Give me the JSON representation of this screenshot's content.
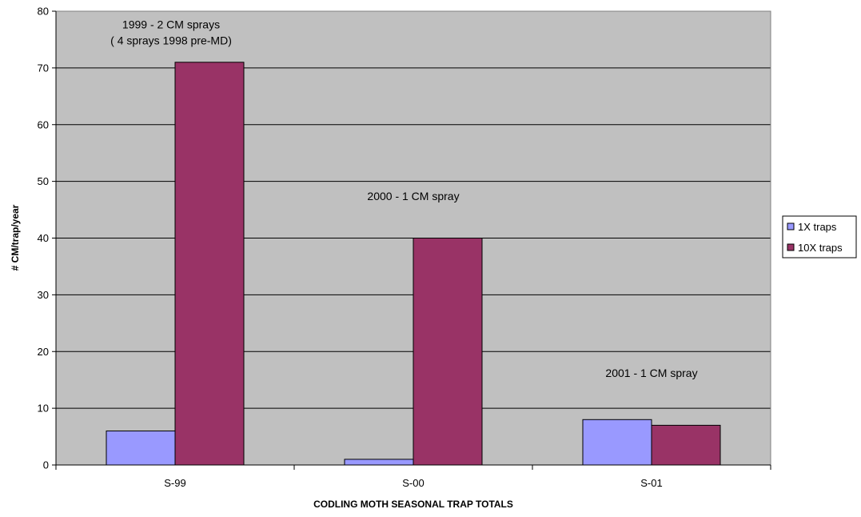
{
  "chart_data": {
    "type": "bar",
    "categories": [
      "S-99",
      "S-00",
      "S-01"
    ],
    "series": [
      {
        "name": "1X traps",
        "values": [
          6,
          1,
          8
        ],
        "color": "#9999ff"
      },
      {
        "name": "10X traps",
        "values": [
          71,
          40,
          7
        ],
        "color": "#993366"
      }
    ],
    "xlabel": "CODLING MOTH SEASONAL TRAP TOTALS",
    "ylabel": "# CM/trap/year",
    "ylim": [
      0,
      80
    ],
    "yticks": [
      0,
      10,
      20,
      30,
      40,
      50,
      60,
      70,
      80
    ],
    "grid": true,
    "plot_background": "#c0c0c0",
    "legend_position": "right",
    "annotations": [
      {
        "lines": [
          "1999 - 2 CM sprays",
          "( 4 sprays 1998 pre-MD)"
        ],
        "category": "S-99",
        "y": 77
      },
      {
        "lines": [
          "2000 - 1 CM spray"
        ],
        "category": "S-00",
        "y": 46.7
      },
      {
        "lines": [
          "2001 - 1 CM spray"
        ],
        "category": "S-01",
        "y": 15.5
      }
    ]
  }
}
